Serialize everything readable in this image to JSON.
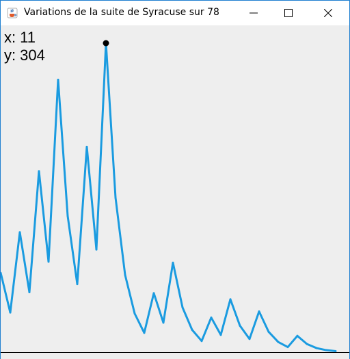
{
  "window": {
    "title": "Variations de la suite de Syracuse sur 78",
    "app_icon": "java-cup-icon",
    "controls": [
      "minimize-icon",
      "maximize-icon",
      "close-icon"
    ]
  },
  "readout": {
    "x_label": "x:",
    "x_value": "11",
    "y_label": "y:",
    "y_value": "304"
  },
  "colors": {
    "line": "#1a9be0",
    "marker": "#000000",
    "background": "#eeeeee",
    "axis": "#000000",
    "accent": "#1f7fd0"
  },
  "chart_data": {
    "type": "line",
    "title": "",
    "xlabel": "",
    "ylabel": "",
    "x": [
      0,
      1,
      2,
      3,
      4,
      5,
      6,
      7,
      8,
      9,
      10,
      11,
      12,
      13,
      14,
      15,
      16,
      17,
      18,
      19,
      20,
      21,
      22,
      23,
      24,
      25,
      26,
      27,
      28,
      29,
      30,
      31,
      32,
      33,
      34,
      35
    ],
    "values": [
      78,
      39,
      118,
      59,
      178,
      89,
      268,
      134,
      67,
      202,
      101,
      304,
      152,
      76,
      38,
      19,
      58,
      29,
      88,
      44,
      22,
      11,
      34,
      17,
      52,
      26,
      13,
      40,
      20,
      10,
      5,
      16,
      8,
      4,
      2,
      1
    ],
    "xlim": [
      0,
      35
    ],
    "ylim": [
      0,
      304
    ],
    "highlight_point": {
      "x": 11,
      "y": 304
    },
    "grid": false
  }
}
